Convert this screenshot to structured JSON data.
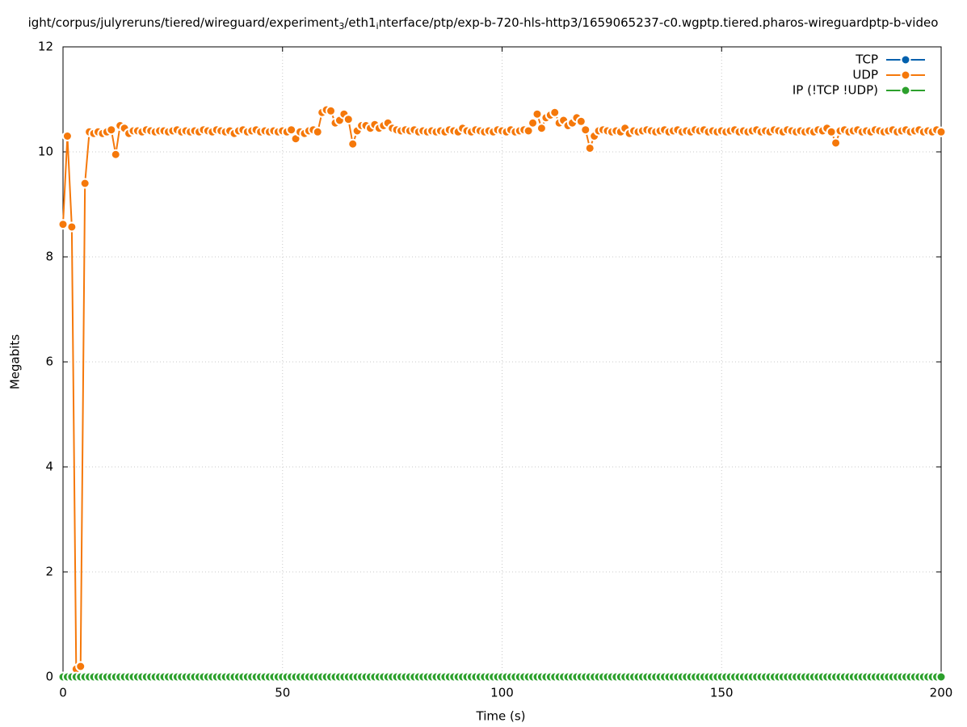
{
  "chart_data": {
    "type": "line",
    "title": [
      "ight/corpus/julyreruns/tiered/wireguard/experiment",
      "3",
      "/eth1",
      "i",
      "nterface/ptp/exp-b-720-hls-http3/1659065237-c0.wgptp.tiered.pharos-wireguardptp-b-video"
    ],
    "x_label": "Time (s)",
    "y_label": "Megabits",
    "xlim": [
      0,
      200
    ],
    "xticks": [
      0,
      50,
      100,
      150,
      200
    ],
    "ylim": [
      0,
      12
    ],
    "yticks": [
      0,
      2,
      4,
      6,
      8,
      10,
      12
    ],
    "grid": true,
    "legend": "top-right",
    "x": [
      0,
      1,
      2,
      3,
      4,
      5,
      6,
      7,
      8,
      9,
      10,
      11,
      12,
      13,
      14,
      15,
      16,
      17,
      18,
      19,
      20,
      21,
      22,
      23,
      24,
      25,
      26,
      27,
      28,
      29,
      30,
      31,
      32,
      33,
      34,
      35,
      36,
      37,
      38,
      39,
      40,
      41,
      42,
      43,
      44,
      45,
      46,
      47,
      48,
      49,
      50,
      51,
      52,
      53,
      54,
      55,
      56,
      57,
      58,
      59,
      60,
      61,
      62,
      63,
      64,
      65,
      66,
      67,
      68,
      69,
      70,
      71,
      72,
      73,
      74,
      75,
      76,
      77,
      78,
      79,
      80,
      81,
      82,
      83,
      84,
      85,
      86,
      87,
      88,
      89,
      90,
      91,
      92,
      93,
      94,
      95,
      96,
      97,
      98,
      99,
      100,
      101,
      102,
      103,
      104,
      105,
      106,
      107,
      108,
      109,
      110,
      111,
      112,
      113,
      114,
      115,
      116,
      117,
      118,
      119,
      120,
      121,
      122,
      123,
      124,
      125,
      126,
      127,
      128,
      129,
      130,
      131,
      132,
      133,
      134,
      135,
      136,
      137,
      138,
      139,
      140,
      141,
      142,
      143,
      144,
      145,
      146,
      147,
      148,
      149,
      150,
      151,
      152,
      153,
      154,
      155,
      156,
      157,
      158,
      159,
      160,
      161,
      162,
      163,
      164,
      165,
      166,
      167,
      168,
      169,
      170,
      171,
      172,
      173,
      174,
      175,
      176,
      177,
      178,
      179,
      180,
      181,
      182,
      183,
      184,
      185,
      186,
      187,
      188,
      189,
      190,
      191,
      192,
      193,
      194,
      195,
      196,
      197,
      198,
      199,
      200
    ],
    "series": [
      {
        "name": "TCP",
        "color": "#0060ad",
        "values": [
          0,
          0,
          0,
          0,
          0,
          0,
          0,
          0,
          0,
          0,
          0,
          0,
          0,
          0,
          0,
          0,
          0,
          0,
          0,
          0,
          0,
          0,
          0,
          0,
          0,
          0,
          0,
          0,
          0,
          0,
          0,
          0,
          0,
          0,
          0,
          0,
          0,
          0,
          0,
          0,
          0,
          0,
          0,
          0,
          0,
          0,
          0,
          0,
          0,
          0,
          0,
          0,
          0,
          0,
          0,
          0,
          0,
          0,
          0,
          0,
          0,
          0,
          0,
          0,
          0,
          0,
          0,
          0,
          0,
          0,
          0,
          0,
          0,
          0,
          0,
          0,
          0,
          0,
          0,
          0,
          0,
          0,
          0,
          0,
          0,
          0,
          0,
          0,
          0,
          0,
          0,
          0,
          0,
          0,
          0,
          0,
          0,
          0,
          0,
          0,
          0,
          0,
          0,
          0,
          0,
          0,
          0,
          0,
          0,
          0,
          0,
          0,
          0,
          0,
          0,
          0,
          0,
          0,
          0,
          0,
          0,
          0,
          0,
          0,
          0,
          0,
          0,
          0,
          0,
          0,
          0,
          0,
          0,
          0,
          0,
          0,
          0,
          0,
          0,
          0,
          0,
          0,
          0,
          0,
          0,
          0,
          0,
          0,
          0,
          0,
          0,
          0,
          0,
          0,
          0,
          0,
          0,
          0,
          0,
          0,
          0,
          0,
          0,
          0,
          0,
          0,
          0,
          0,
          0,
          0,
          0,
          0,
          0,
          0,
          0,
          0,
          0,
          0,
          0,
          0,
          0,
          0,
          0,
          0,
          0,
          0,
          0,
          0,
          0,
          0,
          0,
          0,
          0,
          0,
          0,
          0,
          0,
          0,
          0,
          0,
          0
        ]
      },
      {
        "name": "UDP",
        "color": "#f5780a",
        "values": [
          8.62,
          10.3,
          8.57,
          0.15,
          0.2,
          9.4,
          10.38,
          10.35,
          10.38,
          10.35,
          10.38,
          10.42,
          9.95,
          10.5,
          10.45,
          10.35,
          10.4,
          10.4,
          10.38,
          10.42,
          10.4,
          10.38,
          10.4,
          10.4,
          10.38,
          10.4,
          10.42,
          10.38,
          10.4,
          10.38,
          10.4,
          10.38,
          10.42,
          10.4,
          10.38,
          10.42,
          10.4,
          10.38,
          10.4,
          10.35,
          10.4,
          10.42,
          10.38,
          10.4,
          10.42,
          10.38,
          10.4,
          10.38,
          10.4,
          10.38,
          10.4,
          10.38,
          10.42,
          10.25,
          10.38,
          10.35,
          10.4,
          10.42,
          10.38,
          10.75,
          10.8,
          10.78,
          10.55,
          10.6,
          10.72,
          10.62,
          10.15,
          10.4,
          10.5,
          10.5,
          10.45,
          10.52,
          10.45,
          10.5,
          10.55,
          10.45,
          10.42,
          10.4,
          10.42,
          10.4,
          10.42,
          10.38,
          10.4,
          10.38,
          10.4,
          10.38,
          10.4,
          10.38,
          10.42,
          10.4,
          10.38,
          10.45,
          10.4,
          10.38,
          10.42,
          10.4,
          10.38,
          10.4,
          10.38,
          10.42,
          10.4,
          10.38,
          10.42,
          10.38,
          10.4,
          10.42,
          10.4,
          10.55,
          10.72,
          10.45,
          10.65,
          10.7,
          10.75,
          10.55,
          10.6,
          10.5,
          10.55,
          10.65,
          10.58,
          10.42,
          10.07,
          10.3,
          10.4,
          10.42,
          10.4,
          10.38,
          10.4,
          10.38,
          10.45,
          10.35,
          10.4,
          10.38,
          10.4,
          10.42,
          10.4,
          10.38,
          10.4,
          10.42,
          10.38,
          10.4,
          10.42,
          10.38,
          10.4,
          10.38,
          10.42,
          10.4,
          10.42,
          10.38,
          10.4,
          10.38,
          10.4,
          10.38,
          10.4,
          10.42,
          10.38,
          10.4,
          10.38,
          10.4,
          10.42,
          10.38,
          10.4,
          10.38,
          10.42,
          10.4,
          10.38,
          10.42,
          10.4,
          10.38,
          10.4,
          10.38,
          10.4,
          10.38,
          10.42,
          10.4,
          10.45,
          10.38,
          10.17,
          10.4,
          10.42,
          10.38,
          10.4,
          10.42,
          10.38,
          10.4,
          10.38,
          10.42,
          10.4,
          10.38,
          10.4,
          10.42,
          10.38,
          10.4,
          10.42,
          10.38,
          10.4,
          10.42,
          10.38,
          10.4,
          10.38,
          10.42,
          10.38
        ]
      },
      {
        "name": "IP (!TCP  !UDP)",
        "color": "#2ca02c",
        "values": [
          0,
          0,
          0,
          0,
          0,
          0,
          0,
          0,
          0,
          0,
          0,
          0,
          0,
          0,
          0,
          0,
          0,
          0,
          0,
          0,
          0,
          0,
          0,
          0,
          0,
          0,
          0,
          0,
          0,
          0,
          0,
          0,
          0,
          0,
          0,
          0,
          0,
          0,
          0,
          0,
          0,
          0,
          0,
          0,
          0,
          0,
          0,
          0,
          0,
          0,
          0,
          0,
          0,
          0,
          0,
          0,
          0,
          0,
          0,
          0,
          0,
          0,
          0,
          0,
          0,
          0,
          0,
          0,
          0,
          0,
          0,
          0,
          0,
          0,
          0,
          0,
          0,
          0,
          0,
          0,
          0,
          0,
          0,
          0,
          0,
          0,
          0,
          0,
          0,
          0,
          0,
          0,
          0,
          0,
          0,
          0,
          0,
          0,
          0,
          0,
          0,
          0,
          0,
          0,
          0,
          0,
          0,
          0,
          0,
          0,
          0,
          0,
          0,
          0,
          0,
          0,
          0,
          0,
          0,
          0,
          0,
          0,
          0,
          0,
          0,
          0,
          0,
          0,
          0,
          0,
          0,
          0,
          0,
          0,
          0,
          0,
          0,
          0,
          0,
          0,
          0,
          0,
          0,
          0,
          0,
          0,
          0,
          0,
          0,
          0,
          0,
          0,
          0,
          0,
          0,
          0,
          0,
          0,
          0,
          0,
          0,
          0,
          0,
          0,
          0,
          0,
          0,
          0,
          0,
          0,
          0,
          0,
          0,
          0,
          0,
          0,
          0,
          0,
          0,
          0,
          0,
          0,
          0,
          0,
          0,
          0,
          0,
          0,
          0,
          0,
          0,
          0,
          0,
          0,
          0,
          0,
          0,
          0,
          0,
          0,
          0
        ]
      }
    ]
  }
}
